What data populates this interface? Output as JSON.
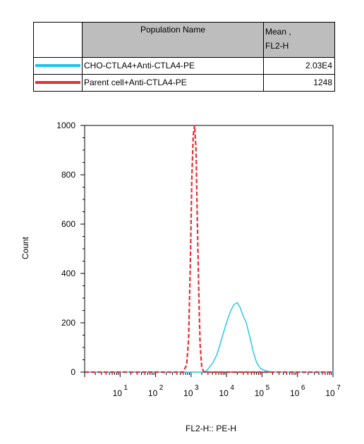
{
  "legend_table": {
    "header_name": "Population Name",
    "header_mean_line1": "Mean ,",
    "header_mean_line2": "FL2-H",
    "rows": [
      {
        "name": "CHO-CTLA4+Anti-CTLA4-PE",
        "mean": "2.03E4",
        "color": "#1ec3ee"
      },
      {
        "name": "Parent cell+Anti-CTLA4-PE",
        "mean": "1248",
        "color": "#ee2c32"
      }
    ]
  },
  "chart_data": {
    "type": "line",
    "xlabel": "FL2-H:: PE-H",
    "ylabel": "Count",
    "x_scale": "log",
    "xlim": [
      1,
      10000000
    ],
    "ylim": [
      0,
      1000
    ],
    "x_ticks": [
      {
        "base": "10",
        "exp": "1",
        "value": 10
      },
      {
        "base": "10",
        "exp": "2",
        "value": 100
      },
      {
        "base": "10",
        "exp": "3",
        "value": 1000
      },
      {
        "base": "10",
        "exp": "4",
        "value": 10000
      },
      {
        "base": "10",
        "exp": "5",
        "value": 100000
      },
      {
        "base": "10",
        "exp": "6",
        "value": 1000000
      },
      {
        "base": "10",
        "exp": "7",
        "value": 10000000
      }
    ],
    "y_ticks": [
      "0",
      "200",
      "400",
      "600",
      "800",
      "1000"
    ],
    "grid": false,
    "series": [
      {
        "name": "CHO-CTLA4+Anti-CTLA4-PE",
        "color": "#1ec3ee",
        "style": "solid",
        "x": [
          1,
          100,
          1000,
          2000,
          2700,
          3300,
          4200,
          5300,
          6500,
          8200,
          10500,
          13200,
          16500,
          20000,
          24000,
          29000,
          36000,
          45000,
          56000,
          70000,
          90000,
          130000,
          200000,
          1000000,
          10000000
        ],
        "y": [
          0,
          0,
          0,
          0,
          5,
          20,
          40,
          70,
          110,
          160,
          210,
          250,
          275,
          282,
          262,
          230,
          200,
          145,
          85,
          40,
          15,
          5,
          0,
          0,
          0
        ]
      },
      {
        "name": "Parent cell+Anti-CTLA4-PE",
        "color": "#ee2c32",
        "style": "dashed",
        "x": [
          1,
          100,
          600,
          750,
          850,
          950,
          1050,
          1150,
          1260,
          1380,
          1500,
          1650,
          1800,
          2000,
          2300,
          10000,
          10000000
        ],
        "y": [
          0,
          0,
          0,
          30,
          130,
          420,
          780,
          960,
          1000,
          900,
          620,
          320,
          110,
          20,
          0,
          0,
          0
        ]
      }
    ]
  }
}
